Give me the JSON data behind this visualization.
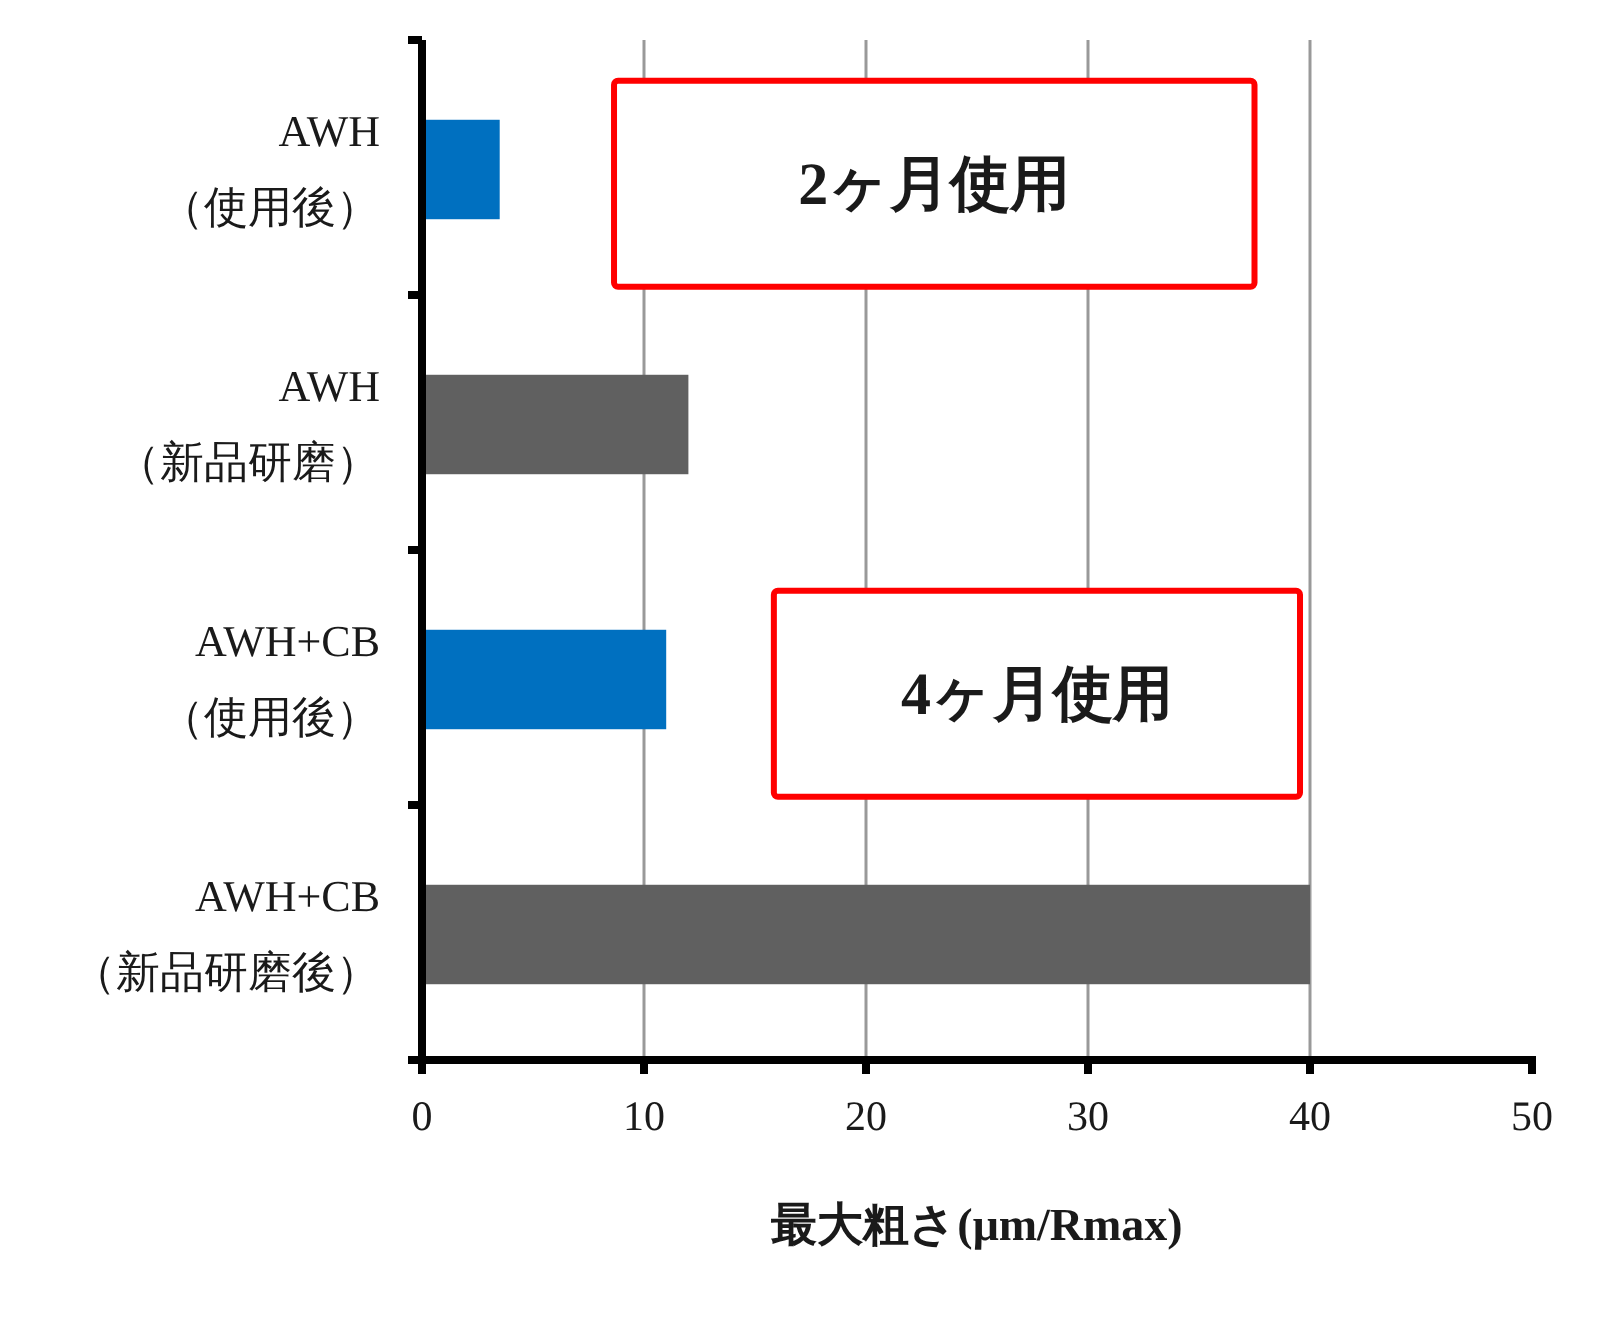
{
  "chart_data": {
    "type": "bar",
    "orientation": "horizontal",
    "categories": [
      "AWH\n（使用後）",
      "AWH\n（新品研磨）",
      "AWH+CB\n（使用後）",
      "AWH+CB\n（新品研磨後）"
    ],
    "values": [
      3.5,
      12,
      11,
      40
    ],
    "colors": [
      "#0070c0",
      "#606060",
      "#0070c0",
      "#606060"
    ],
    "xlim": [
      0,
      50
    ],
    "xticks": [
      0,
      10,
      20,
      30,
      40,
      50
    ],
    "xlabel": "最大粗さ(μm/Rmax)",
    "grid": "x",
    "annotations": [
      "2ヶ月使用",
      "4ヶ月使用"
    ]
  }
}
